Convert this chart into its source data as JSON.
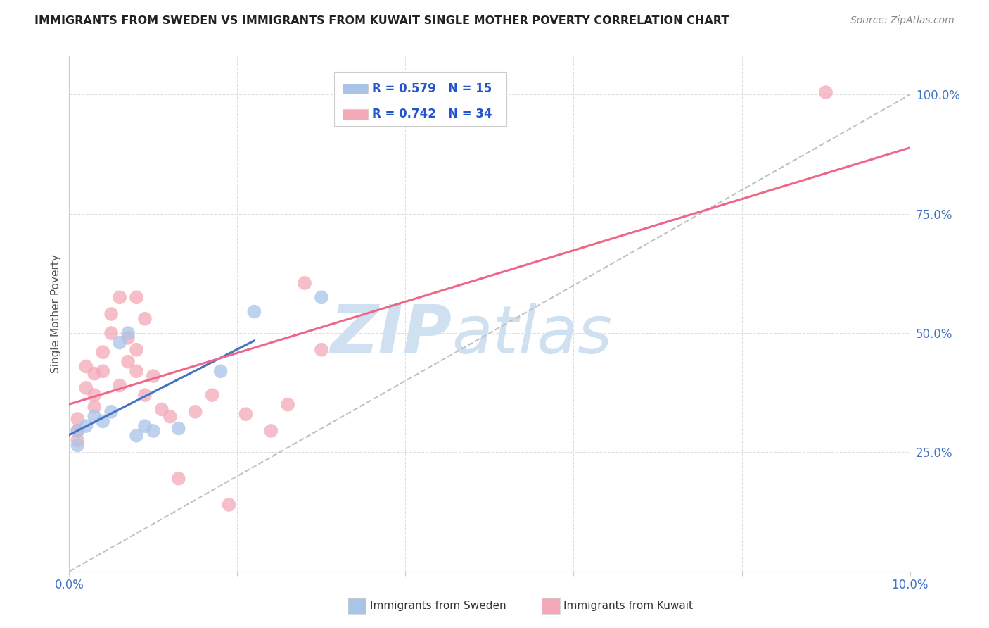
{
  "title": "IMMIGRANTS FROM SWEDEN VS IMMIGRANTS FROM KUWAIT SINGLE MOTHER POVERTY CORRELATION CHART",
  "source": "Source: ZipAtlas.com",
  "ylabel": "Single Mother Poverty",
  "xlim": [
    0.0,
    0.1
  ],
  "ylim": [
    0.0,
    1.08
  ],
  "x_ticks": [
    0.0,
    0.02,
    0.04,
    0.06,
    0.08,
    0.1
  ],
  "x_tick_labels": [
    "0.0%",
    "",
    "",
    "",
    "",
    "10.0%"
  ],
  "y_ticks_right": [
    0.25,
    0.5,
    0.75,
    1.0
  ],
  "y_tick_labels_right": [
    "25.0%",
    "50.0%",
    "75.0%",
    "100.0%"
  ],
  "grid_color": "#e0e0e0",
  "background_color": "#ffffff",
  "sweden_color": "#aac4e8",
  "kuwait_color": "#f4a8b8",
  "sweden_R": 0.579,
  "sweden_N": 15,
  "kuwait_R": 0.742,
  "kuwait_N": 34,
  "sweden_line_color": "#4472c4",
  "kuwait_line_color": "#ee6688",
  "diagonal_color": "#c0c0c0",
  "sweden_scatter_x": [
    0.001,
    0.001,
    0.002,
    0.003,
    0.004,
    0.005,
    0.006,
    0.007,
    0.008,
    0.009,
    0.01,
    0.013,
    0.018,
    0.022,
    0.03
  ],
  "sweden_scatter_y": [
    0.295,
    0.265,
    0.305,
    0.325,
    0.315,
    0.335,
    0.48,
    0.5,
    0.285,
    0.305,
    0.295,
    0.3,
    0.42,
    0.545,
    0.575
  ],
  "kuwait_scatter_x": [
    0.001,
    0.001,
    0.001,
    0.002,
    0.002,
    0.003,
    0.003,
    0.003,
    0.004,
    0.004,
    0.005,
    0.005,
    0.006,
    0.006,
    0.007,
    0.007,
    0.008,
    0.008,
    0.008,
    0.009,
    0.009,
    0.01,
    0.011,
    0.012,
    0.013,
    0.015,
    0.017,
    0.019,
    0.021,
    0.024,
    0.026,
    0.028,
    0.03,
    0.09
  ],
  "kuwait_scatter_y": [
    0.295,
    0.32,
    0.275,
    0.385,
    0.43,
    0.345,
    0.37,
    0.415,
    0.42,
    0.46,
    0.5,
    0.54,
    0.575,
    0.39,
    0.44,
    0.49,
    0.575,
    0.42,
    0.465,
    0.53,
    0.37,
    0.41,
    0.34,
    0.325,
    0.195,
    0.335,
    0.37,
    0.14,
    0.33,
    0.295,
    0.35,
    0.605,
    0.465,
    1.005
  ],
  "watermark_zip": "ZIP",
  "watermark_atlas": "atlas",
  "watermark_color": "#cfe0f0",
  "watermark_fontsize": 68
}
